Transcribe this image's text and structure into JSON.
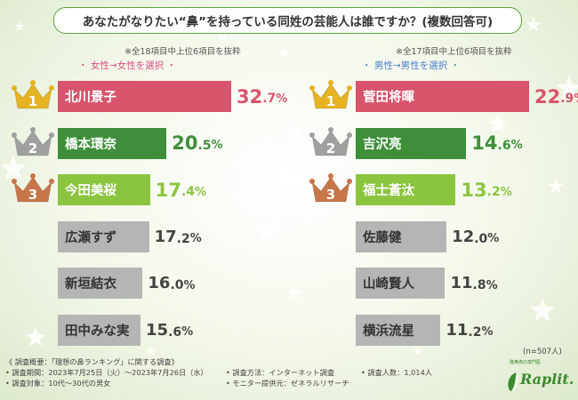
{
  "title": "あなたがなりたい“鼻”を持っている同姓の芸能人は誰ですか？(複数回答可)",
  "colors": {
    "red": "#d8546b",
    "green": "#3f8f3a",
    "light_green": "#8bc53f",
    "gray": "#b5b5b5",
    "pink_text": "#d94f88",
    "blue_text": "#4a7ec9",
    "gold": "#e6b422",
    "silver": "#a0a0a0",
    "bronze": "#c7764a"
  },
  "left_panel": {
    "note": "※全18項目中上位6項目を抜粋",
    "filter": "・ 女性→女性を選択 ・"
  },
  "right_panel": {
    "note": "※全17項目中上位6項目を抜粋",
    "filter": "・ 男性→男性を選択 ・"
  },
  "chart_data": [
    {
      "type": "bar",
      "categories": [
        "北川景子",
        "橋本環奈",
        "今田美桜",
        "広瀬すず",
        "新垣結衣",
        "田中みな実"
      ],
      "values": [
        32.7,
        20.5,
        17.4,
        17.2,
        16.0,
        15.6
      ],
      "value_labels": [
        {
          "int": "32",
          "dec": ".7",
          "sign": "%"
        },
        {
          "int": "20",
          "dec": ".5",
          "sign": "%"
        },
        {
          "int": "17",
          "dec": ".4",
          "sign": "%"
        },
        {
          "int": "17",
          "dec": ".2",
          "sign": "%"
        },
        {
          "int": "16",
          "dec": ".0",
          "sign": "%"
        },
        {
          "int": "15",
          "dec": ".6",
          "sign": "%"
        }
      ],
      "ranks": [
        "1",
        "2",
        "3"
      ],
      "xlim": [
        0,
        32.7
      ]
    },
    {
      "type": "bar",
      "categories": [
        "菅田将暉",
        "吉沢亮",
        "福士蒼汰",
        "佐藤健",
        "山崎賢人",
        "横浜流星"
      ],
      "values": [
        22.9,
        14.6,
        13.2,
        12.0,
        11.8,
        11.2
      ],
      "value_labels": [
        {
          "int": "22",
          "dec": ".9",
          "sign": "%"
        },
        {
          "int": "14",
          "dec": ".6",
          "sign": "%"
        },
        {
          "int": "13",
          "dec": ".2",
          "sign": "%"
        },
        {
          "int": "12",
          "dec": ".0",
          "sign": "%"
        },
        {
          "int": "11",
          "dec": ".8",
          "sign": "%"
        },
        {
          "int": "11",
          "dec": ".2",
          "sign": "%"
        }
      ],
      "ranks": [
        "1",
        "2",
        "3"
      ],
      "xlim": [
        0,
        22.9
      ]
    }
  ],
  "sample_size": "(n=507人)",
  "footer": {
    "overview": "《 調査概要：「理想の鼻ランキング」に関する調査》",
    "period": "• 調査期間：2023年7月25日（火）〜2023年7月26日（水）",
    "target": "• 調査対象：10代〜30代の男女",
    "method": "• 調査方法：インターネット調査",
    "monitor": "• モニター提供元：ゼネラルリサーチ",
    "count": "• 調査人数：1,014人"
  },
  "logo": {
    "tagline": "隆鼻術の専門医",
    "name": "Raplit."
  }
}
